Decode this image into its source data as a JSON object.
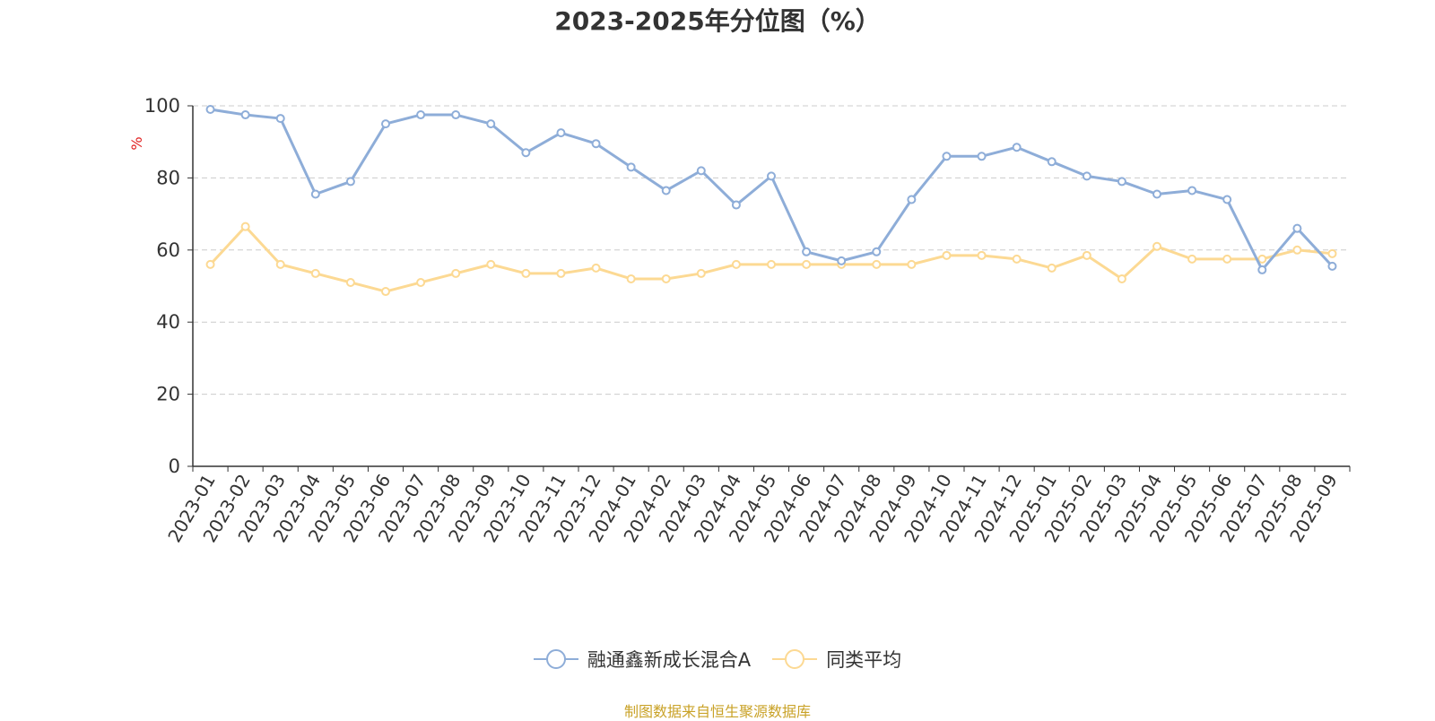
{
  "chart_data": {
    "type": "line",
    "title": "2023-2025年分位图（%）",
    "ylabel": "%",
    "ylim": [
      0,
      100
    ],
    "yticks": [
      0,
      20,
      40,
      60,
      80,
      100
    ],
    "grid": true,
    "legend_position": "bottom",
    "categories": [
      "2023-01",
      "2023-02",
      "2023-03",
      "2023-04",
      "2023-05",
      "2023-06",
      "2023-07",
      "2023-08",
      "2023-09",
      "2023-10",
      "2023-11",
      "2023-12",
      "2024-01",
      "2024-02",
      "2024-03",
      "2024-04",
      "2024-05",
      "2024-06",
      "2024-07",
      "2024-08",
      "2024-09",
      "2024-10",
      "2024-11",
      "2024-12",
      "2025-01",
      "2025-02",
      "2025-03",
      "2025-04",
      "2025-05",
      "2025-06",
      "2025-07",
      "2025-08",
      "2025-09"
    ],
    "series": [
      {
        "name": "融通鑫新成长混合A",
        "color": "#8eadd8",
        "values": [
          99,
          97.5,
          96.5,
          75.5,
          79,
          95,
          97.5,
          97.5,
          95,
          87,
          92.5,
          89.5,
          83,
          76.5,
          82,
          72.5,
          80.5,
          59.5,
          57,
          59.5,
          74,
          86,
          86,
          88.5,
          84.5,
          80.5,
          79,
          75.5,
          76.5,
          74,
          54.5,
          66,
          55.5
        ]
      },
      {
        "name": "同类平均",
        "color": "#fcd993",
        "values": [
          56,
          66.5,
          56,
          53.5,
          51,
          48.5,
          51,
          53.5,
          56,
          53.5,
          53.5,
          55,
          52,
          52,
          53.5,
          56,
          56,
          56,
          56,
          56,
          56,
          58.5,
          58.5,
          57.5,
          55,
          58.5,
          52,
          61,
          57.5,
          57.5,
          57.5,
          60,
          59
        ]
      }
    ]
  },
  "footer": {
    "source": "制图数据来自恒生聚源数据库"
  },
  "colors": {
    "axis": "#333333",
    "grid": "#cccccc",
    "ylabel": "#e02020",
    "source": "#c9a227"
  }
}
